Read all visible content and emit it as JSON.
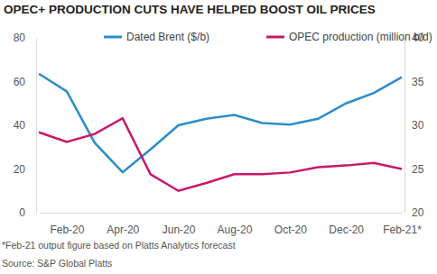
{
  "chart_data": {
    "type": "line",
    "title": "OPEC+ PRODUCTION CUTS HAVE HELPED BOOST OIL PRICES",
    "categories": [
      null,
      "Feb-20",
      null,
      "Apr-20",
      null,
      "Jun-20",
      null,
      "Aug-20",
      null,
      "Oct-20",
      null,
      "Dec-20",
      null,
      "Feb-21*"
    ],
    "series": [
      {
        "name": "Dated Brent ($/b)",
        "color": "#2a8dc9",
        "values": [
          63.6,
          55.5,
          32,
          18.5,
          29,
          40,
          43,
          44.7,
          41,
          40.3,
          43,
          50,
          54.8,
          62
        ]
      },
      {
        "name": "OPEC production (million b/d)",
        "color": "#c8176b",
        "axis": "y2",
        "values": [
          29.2,
          28.1,
          29.0,
          30.8,
          24.4,
          22.5,
          23.4,
          24.4,
          24.4,
          24.6,
          25.2,
          25.4,
          25.7,
          25.0
        ]
      }
    ],
    "ylim": [
      0,
      80
    ],
    "yticks": [
      0,
      20,
      40,
      60,
      80
    ],
    "y2lim": [
      20,
      40
    ],
    "y2ticks": [
      20,
      25,
      30,
      35,
      40
    ],
    "grid": false,
    "legend": "top",
    "footnote": "*Feb-21 output figure based on Platts Analytics forecast",
    "source": "Source: S&P Global Platts"
  }
}
